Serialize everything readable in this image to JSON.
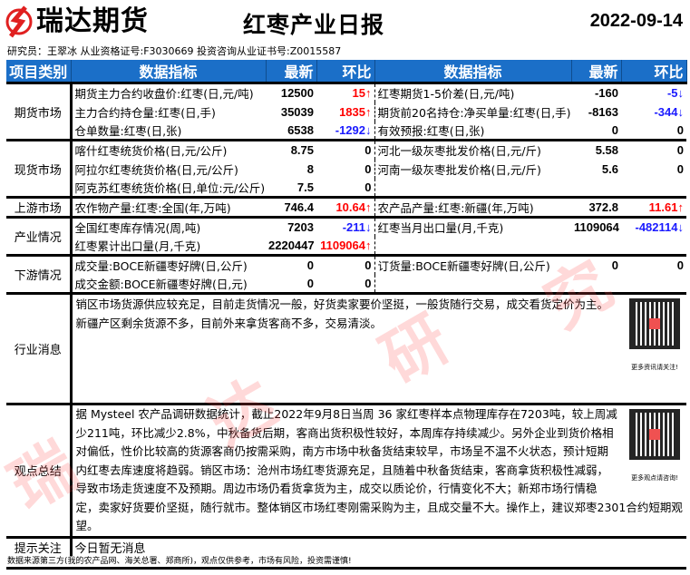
{
  "header": {
    "logo_text": "瑞达期货",
    "title": "红枣产业日报",
    "date": "2022-09-14",
    "author_line": "研究员：王翠冰   从业资格证号:F3030669   投资咨询从业证书号:Z0015587"
  },
  "columns": {
    "category": "项目类别",
    "indicator": "数据指标",
    "latest": "最新",
    "change": "环比"
  },
  "groups": [
    {
      "category": "期货市场",
      "rows": [
        {
          "l": {
            "name": "期货主力合约收盘价:红枣(日,元/吨)",
            "latest": "12500",
            "change": "15↑",
            "dir": "up"
          },
          "r": {
            "name": "红枣期货1-5价差(日,元/吨)",
            "latest": "-160",
            "change": "-5↓",
            "dir": "down"
          }
        },
        {
          "l": {
            "name": "主力合约持仓量:红枣(日,手)",
            "latest": "35039",
            "change": "1835↑",
            "dir": "up"
          },
          "r": {
            "name": "期货前20名持仓:净买单量:红枣(日,手)",
            "latest": "-8163",
            "change": "-344↓",
            "dir": "down"
          }
        },
        {
          "l": {
            "name": "仓单数量:红枣(日,张)",
            "latest": "6538",
            "change": "-1292↓",
            "dir": "down"
          },
          "r": {
            "name": "有效预报:红枣(日,张)",
            "latest": "0",
            "change": "0",
            "dir": ""
          }
        }
      ]
    },
    {
      "category": "现货市场",
      "rows": [
        {
          "l": {
            "name": "喀什红枣统货价格(日,元/公斤)",
            "latest": "8.75",
            "change": "0",
            "dir": ""
          },
          "r": {
            "name": "河北一级灰枣批发价格(日,元/斤)",
            "latest": "5.58",
            "change": "0",
            "dir": ""
          }
        },
        {
          "l": {
            "name": "阿拉尔红枣统货价格(日,元/公斤)",
            "latest": "8",
            "change": "0",
            "dir": ""
          },
          "r": {
            "name": "河南一级灰枣批发价格(日,元/斤)",
            "latest": "5.6",
            "change": "0",
            "dir": ""
          }
        },
        {
          "l": {
            "name": "阿克苏红枣统货价格(日,单位:元/公斤)",
            "latest": "7.5",
            "change": "0",
            "dir": ""
          },
          "r": {
            "name": "",
            "latest": "",
            "change": "",
            "dir": ""
          }
        }
      ]
    },
    {
      "category": "上游市场",
      "rows": [
        {
          "l": {
            "name": "农作物产量:红枣:全国(年,万吨)",
            "latest": "746.4",
            "change": "10.64↑",
            "dir": "up"
          },
          "r": {
            "name": "农产品产量:红枣:新疆(年,万吨)",
            "latest": "372.8",
            "change": "11.61↑",
            "dir": "up"
          }
        }
      ]
    },
    {
      "category": "产业情况",
      "rows": [
        {
          "l": {
            "name": "全国红枣库存情况(周,吨)",
            "latest": "7203",
            "change": "-211↓",
            "dir": "down"
          },
          "r": {
            "name": "红枣当月出口量(月,千克)",
            "latest": "1109064",
            "change": "-482114↓",
            "dir": "down"
          }
        },
        {
          "l": {
            "name": "红枣累计出口量(月,千克)",
            "latest": "2220447",
            "change": "1109064↑",
            "dir": "up"
          },
          "r": {
            "name": "",
            "latest": "",
            "change": "",
            "dir": ""
          }
        }
      ]
    },
    {
      "category": "下游情况",
      "rows": [
        {
          "l": {
            "name": "成交量:BOCE新疆枣好牌(日,公斤)",
            "latest": "0",
            "change": "0",
            "dir": ""
          },
          "r": {
            "name": "订货量:BOCE新疆枣好牌(日,公斤)",
            "latest": "0",
            "change": "0",
            "dir": ""
          }
        },
        {
          "l": {
            "name": "成交金额:BOCE新疆枣好牌(日,元)",
            "latest": "0",
            "change": "0",
            "dir": ""
          },
          "r": {
            "name": "",
            "latest": "",
            "change": "",
            "dir": ""
          }
        }
      ]
    }
  ],
  "news": {
    "category": "行业消息",
    "text": "销区市场货源供应较充足，目前走货情况一般，好货卖家要价坚挺，一般货随行交易，成交看货定价为主。新疆产区剩余货源不多，目前外来拿货客商不多，交易清淡。",
    "qr_caption": "更多资讯请关注!"
  },
  "view": {
    "category": "观点总结",
    "text": "据 Mysteel 农产品调研数据统计，截止2022年9月8日当周 36 家红枣样本点物理库存在7203吨，较上周减少211吨，环比减少2.8%，中秋备货后期，客商出货积极性较好，本周库存持续减少。另外企业到货价格相对偏低，性价比较高的货源客商仍按需采购，南方市场中秋备货结束较早，市场呈不温不火状态，预计短期内红枣去库速度将趋弱。销区市场：沧州市场红枣货源充足，且随着中秋备货结束，客商拿货积极性减弱，导致市场走货速度不及预期。周边市场仍看货拿货为主，成交以质论价，行情变化不大；新郑市场行情稳定，卖家好货要价坚挺，随行就市。整体销区市场红枣刚需采购为主，且成交量不大。操作上，建议郑枣2301合约短期观望。",
    "qr_caption": "更多观点请咨询!"
  },
  "tips": {
    "category": "提示关注",
    "text": "今日暂无消息"
  },
  "footer": "数据来源第三方(我的农产品网、海关总署、郑商所)，观点仅供参考，市场有风险，投资需谨慎!",
  "watermark": "瑞达研究",
  "colors": {
    "header_bg": "#1b6fc8",
    "up": "#ff0000",
    "down": "#1a1aff",
    "logo_red": "#e02020"
  }
}
